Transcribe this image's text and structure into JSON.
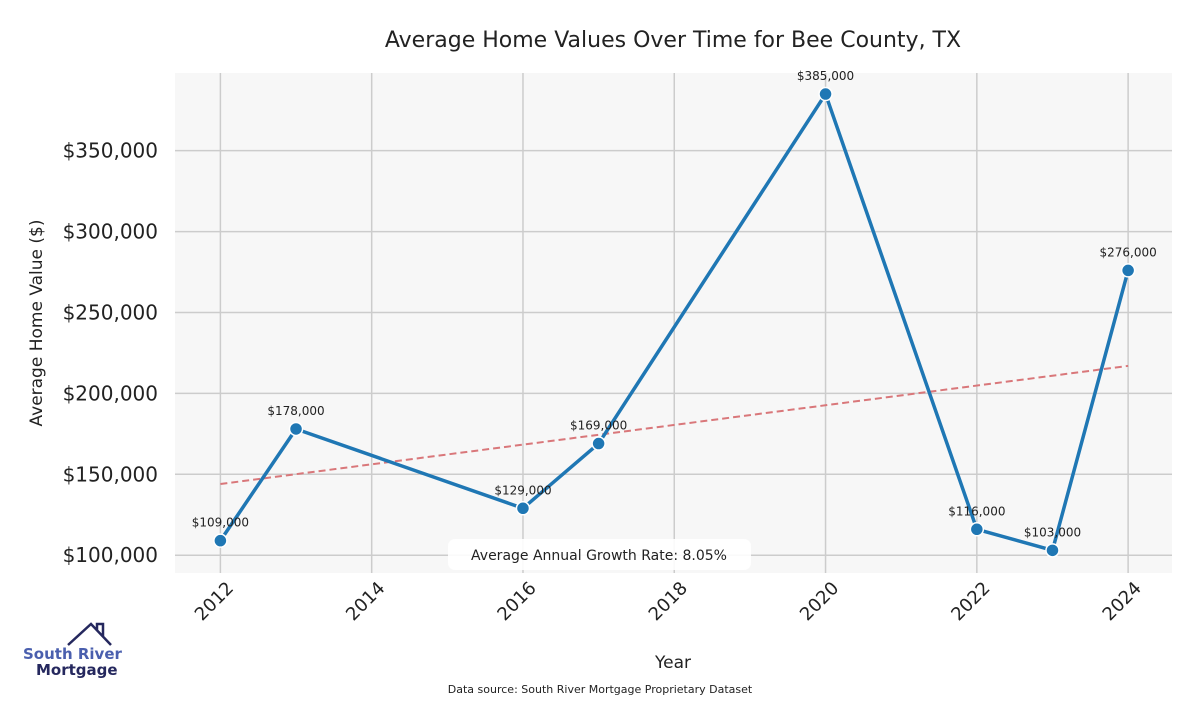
{
  "chart_data": {
    "type": "line",
    "title": "Average Home Values Over Time for Bee County, TX",
    "xlabel": "Year",
    "ylabel": "Average Home Value ($)",
    "x": [
      2012,
      2013,
      2016,
      2017,
      2020,
      2022,
      2023,
      2024
    ],
    "series": [
      {
        "name": "Average Home Value",
        "values": [
          109000,
          178000,
          129000,
          169000,
          385000,
          116000,
          103000,
          276000
        ],
        "color": "#1f77b4"
      }
    ],
    "data_labels": [
      "$109,000",
      "$178,000",
      "$129,000",
      "$169,000",
      "$385,000",
      "$116,000",
      "$103,000",
      "$276,000"
    ],
    "trend": {
      "name": "Trend",
      "x": [
        2012,
        2024
      ],
      "values": [
        144000,
        217000
      ],
      "color": "#d9777a",
      "style": "dashed"
    },
    "xticks": [
      2012,
      2014,
      2016,
      2018,
      2020,
      2022,
      2024
    ],
    "xtick_labels": [
      "2012",
      "2014",
      "2016",
      "2018",
      "2020",
      "2022",
      "2024"
    ],
    "yticks": [
      100000,
      150000,
      200000,
      250000,
      300000,
      350000
    ],
    "ytick_labels": [
      "$100,000",
      "$150,000",
      "$200,000",
      "$250,000",
      "$300,000",
      "$350,000"
    ],
    "xlim": [
      2011.4,
      2024.58
    ],
    "ylim": [
      89000,
      398000
    ],
    "grid": true,
    "annotation": "Average Annual Growth Rate: 8.05%"
  },
  "footer": {
    "source": "Data source: South River Mortgage Proprietary Dataset"
  },
  "logo": {
    "line1": "South River",
    "line2": "Mortgage"
  }
}
